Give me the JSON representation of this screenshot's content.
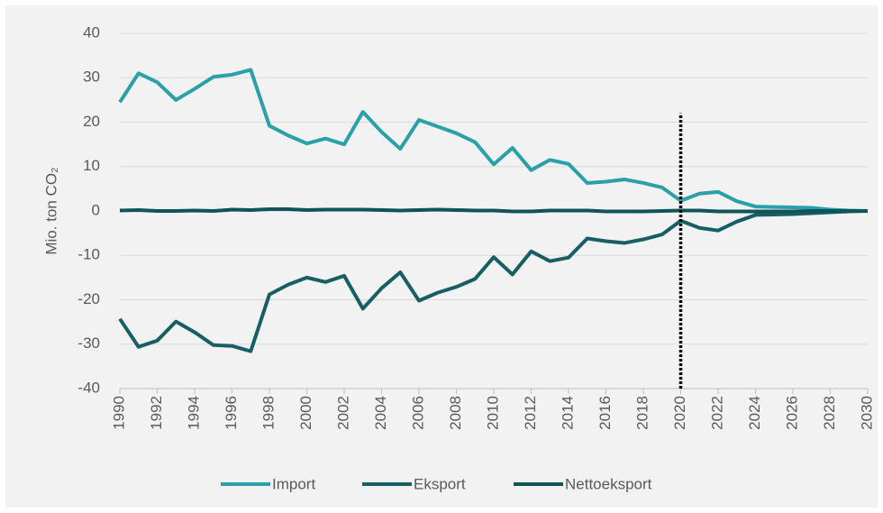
{
  "chart_data": {
    "type": "line",
    "y_label": "Mio. ton CO₂",
    "x": [
      1990,
      1991,
      1992,
      1993,
      1994,
      1995,
      1996,
      1997,
      1998,
      1999,
      2000,
      2001,
      2002,
      2003,
      2004,
      2005,
      2006,
      2007,
      2008,
      2009,
      2010,
      2011,
      2012,
      2013,
      2014,
      2015,
      2016,
      2017,
      2018,
      2019,
      2020,
      2021,
      2022,
      2023,
      2024,
      2025,
      2026,
      2027,
      2028,
      2029,
      2030
    ],
    "series": [
      {
        "name": "Import",
        "color": "#2aa0a8",
        "values": [
          24.5,
          31,
          29,
          25,
          27.5,
          30.2,
          30.7,
          31.8,
          19.2,
          17,
          15.2,
          16.3,
          15,
          22.3,
          17.8,
          14,
          20.5,
          19,
          17.5,
          15.5,
          10.5,
          14.2,
          9.2,
          11.5,
          10.6,
          6.3,
          6.6,
          7.1,
          6.3,
          5.3,
          2.3,
          3.9,
          4.3,
          2.2,
          1,
          0.9,
          0.8,
          0.7,
          0.3,
          0.1,
          0
        ]
      },
      {
        "name": "Eksport",
        "color": "#175f64",
        "values": [
          -24.3,
          -30.6,
          -29.2,
          -24.9,
          -27.3,
          -30.2,
          -30.4,
          -31.6,
          -18.8,
          -16.6,
          -15,
          -16,
          -14.6,
          -22,
          -17.4,
          -13.8,
          -20.2,
          -18.4,
          -17.1,
          -15.3,
          -10.4,
          -14.3,
          -9.1,
          -11.3,
          -10.5,
          -6.2,
          -6.8,
          -7.2,
          -6.4,
          -5.3,
          -2.2,
          -3.8,
          -4.4,
          -2.4,
          -0.9,
          -0.8,
          -0.7,
          -0.5,
          -0.3,
          -0.1,
          0
        ]
      },
      {
        "name": "Nettoeksport",
        "color": "#0f5458",
        "values": [
          0.1,
          0.2,
          0,
          0,
          0.1,
          0,
          0.3,
          0.2,
          0.4,
          0.4,
          0.2,
          0.3,
          0.3,
          0.3,
          0.2,
          0.1,
          0.2,
          0.3,
          0.2,
          0.1,
          0.1,
          -0.1,
          -0.1,
          0.1,
          0.1,
          0.1,
          -0.1,
          -0.1,
          -0.1,
          0,
          0.1,
          0.1,
          -0.1,
          -0.1,
          -0.1,
          -0.1,
          -0.1,
          0,
          0,
          0,
          0
        ]
      }
    ],
    "xlim": [
      1990,
      2030
    ],
    "xticks": [
      1990,
      1992,
      1994,
      1996,
      1998,
      2000,
      2002,
      2004,
      2006,
      2008,
      2010,
      2012,
      2014,
      2016,
      2018,
      2020,
      2022,
      2024,
      2026,
      2028,
      2030
    ],
    "ylim": [
      -40,
      40
    ],
    "yticks": [
      -40,
      -30,
      -20,
      -10,
      0,
      10,
      20,
      30,
      40
    ],
    "grid": true,
    "vline": {
      "x": 2020,
      "y": [
        -40,
        22
      ]
    },
    "legend": "bottom"
  }
}
